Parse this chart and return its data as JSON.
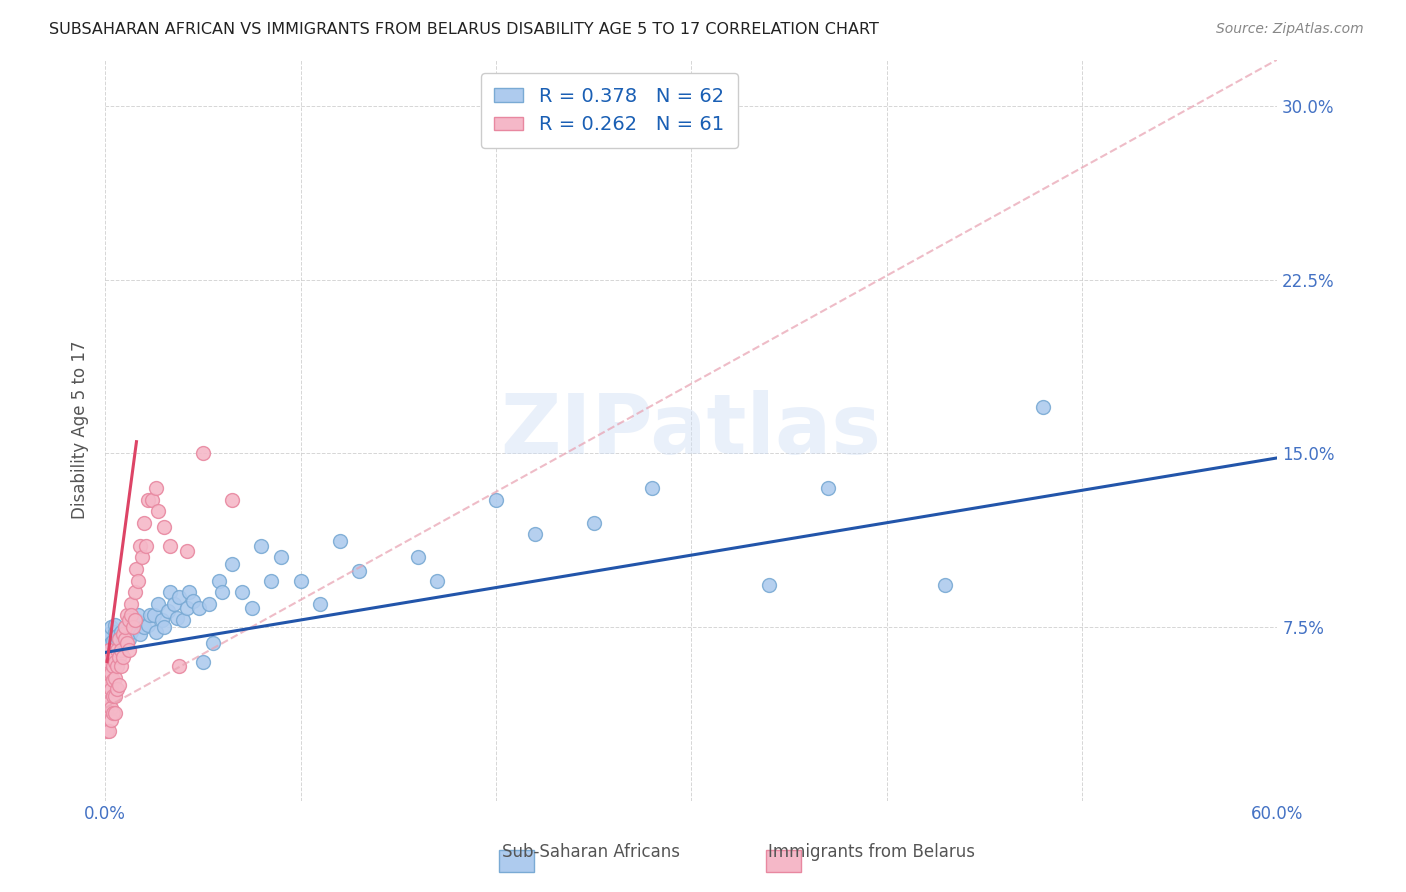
{
  "title": "SUBSAHARAN AFRICAN VS IMMIGRANTS FROM BELARUS DISABILITY AGE 5 TO 17 CORRELATION CHART",
  "source": "Source: ZipAtlas.com",
  "ylabel": "Disability Age 5 to 17",
  "xlim": [
    0.0,
    0.6
  ],
  "ylim": [
    0.0,
    0.32
  ],
  "xticks": [
    0.0,
    0.1,
    0.2,
    0.3,
    0.4,
    0.5,
    0.6
  ],
  "yticks": [
    0.0,
    0.075,
    0.15,
    0.225,
    0.3
  ],
  "xtick_labels": [
    "0.0%",
    "",
    "",
    "",
    "",
    "",
    "60.0%"
  ],
  "ytick_labels": [
    "",
    "7.5%",
    "15.0%",
    "22.5%",
    "30.0%"
  ],
  "background_color": "#ffffff",
  "grid_color": "#cccccc",
  "watermark": "ZIPatlas",
  "series": [
    {
      "name": "Sub-Saharan Africans",
      "R": 0.378,
      "N": 62,
      "marker_facecolor": "#aecbee",
      "marker_edgecolor": "#7aaad4",
      "trend_color": "#2255aa",
      "trend_style": "solid",
      "x": [
        0.001,
        0.002,
        0.003,
        0.003,
        0.004,
        0.005,
        0.005,
        0.006,
        0.007,
        0.008,
        0.009,
        0.01,
        0.011,
        0.012,
        0.013,
        0.015,
        0.016,
        0.017,
        0.018,
        0.02,
        0.022,
        0.023,
        0.025,
        0.026,
        0.027,
        0.029,
        0.03,
        0.032,
        0.033,
        0.035,
        0.037,
        0.038,
        0.04,
        0.042,
        0.043,
        0.045,
        0.048,
        0.05,
        0.053,
        0.055,
        0.058,
        0.06,
        0.065,
        0.07,
        0.075,
        0.08,
        0.085,
        0.09,
        0.1,
        0.11,
        0.12,
        0.13,
        0.16,
        0.17,
        0.2,
        0.22,
        0.25,
        0.28,
        0.37,
        0.43,
        0.48,
        0.34
      ],
      "y": [
        0.07,
        0.072,
        0.068,
        0.075,
        0.069,
        0.073,
        0.076,
        0.071,
        0.07,
        0.073,
        0.069,
        0.075,
        0.072,
        0.07,
        0.073,
        0.075,
        0.078,
        0.08,
        0.072,
        0.075,
        0.076,
        0.08,
        0.08,
        0.073,
        0.085,
        0.078,
        0.075,
        0.082,
        0.09,
        0.085,
        0.079,
        0.088,
        0.078,
        0.083,
        0.09,
        0.086,
        0.083,
        0.06,
        0.085,
        0.068,
        0.095,
        0.09,
        0.102,
        0.09,
        0.083,
        0.11,
        0.095,
        0.105,
        0.095,
        0.085,
        0.112,
        0.099,
        0.105,
        0.095,
        0.13,
        0.115,
        0.12,
        0.135,
        0.135,
        0.093,
        0.17,
        0.093
      ],
      "trend_x": [
        0.0,
        0.6
      ],
      "trend_y": [
        0.064,
        0.148
      ]
    },
    {
      "name": "Immigrants from Belarus",
      "R": 0.262,
      "N": 61,
      "marker_facecolor": "#f5b8c8",
      "marker_edgecolor": "#e888a0",
      "trend_color": "#dd4466",
      "trend_style": "solid",
      "dashed_trend_color": "#e8a0b0",
      "x": [
        0.001,
        0.001,
        0.001,
        0.001,
        0.001,
        0.002,
        0.002,
        0.002,
        0.002,
        0.002,
        0.002,
        0.003,
        0.003,
        0.003,
        0.003,
        0.003,
        0.004,
        0.004,
        0.004,
        0.004,
        0.005,
        0.005,
        0.005,
        0.005,
        0.006,
        0.006,
        0.006,
        0.007,
        0.007,
        0.007,
        0.008,
        0.008,
        0.009,
        0.009,
        0.01,
        0.01,
        0.011,
        0.011,
        0.012,
        0.012,
        0.013,
        0.013,
        0.014,
        0.015,
        0.015,
        0.016,
        0.017,
        0.018,
        0.019,
        0.02,
        0.021,
        0.022,
        0.024,
        0.026,
        0.027,
        0.03,
        0.033,
        0.038,
        0.042,
        0.05,
        0.065
      ],
      "y": [
        0.06,
        0.055,
        0.048,
        0.04,
        0.03,
        0.05,
        0.058,
        0.042,
        0.065,
        0.055,
        0.03,
        0.062,
        0.055,
        0.048,
        0.04,
        0.035,
        0.058,
        0.052,
        0.045,
        0.038,
        0.06,
        0.053,
        0.045,
        0.038,
        0.065,
        0.058,
        0.048,
        0.07,
        0.062,
        0.05,
        0.065,
        0.058,
        0.072,
        0.062,
        0.07,
        0.075,
        0.08,
        0.068,
        0.078,
        0.065,
        0.085,
        0.08,
        0.075,
        0.09,
        0.078,
        0.1,
        0.095,
        0.11,
        0.105,
        0.12,
        0.11,
        0.13,
        0.13,
        0.135,
        0.125,
        0.118,
        0.11,
        0.058,
        0.108,
        0.15,
        0.13
      ],
      "trend_x": [
        0.001,
        0.016
      ],
      "trend_y": [
        0.06,
        0.155
      ],
      "dashed_trend_x": [
        0.0,
        0.6
      ],
      "dashed_trend_y": [
        0.04,
        0.32
      ]
    }
  ]
}
